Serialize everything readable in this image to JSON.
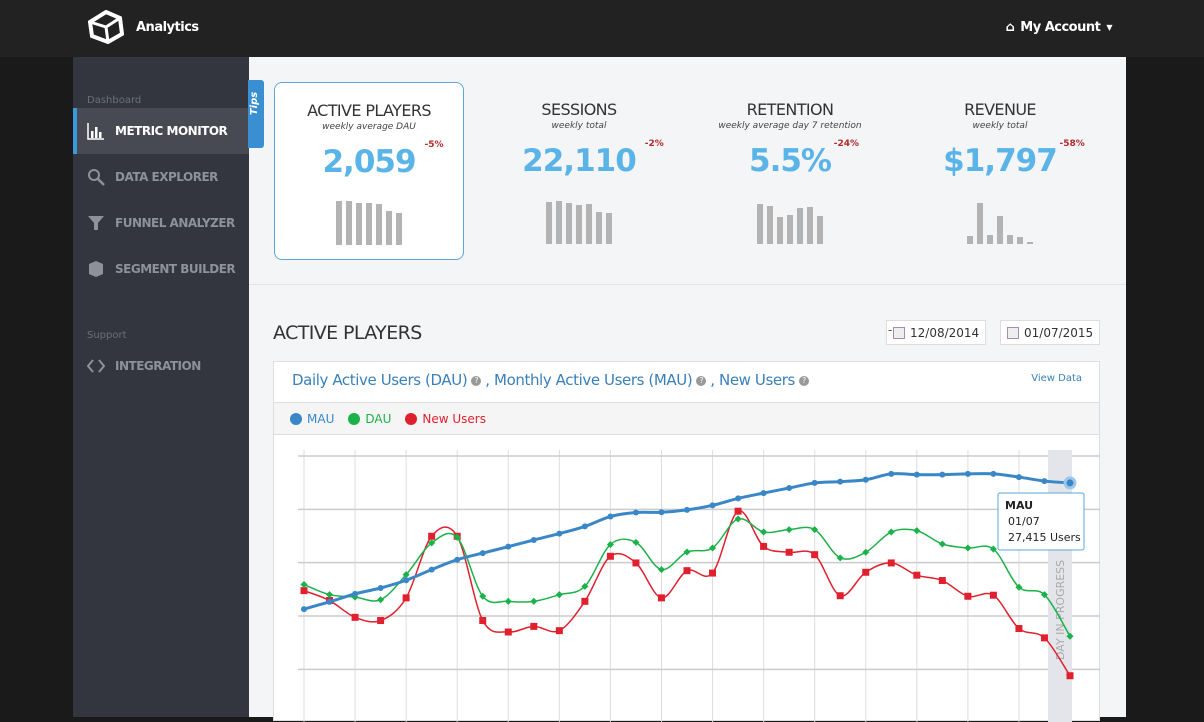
{
  "header": {
    "app_title": "Analytics",
    "account_label": "My Account"
  },
  "sidebar": {
    "section_dashboard": "Dashboard",
    "section_support": "Support",
    "items": [
      {
        "label": "METRIC MONITOR",
        "icon": "bar-chart-icon",
        "active": true
      },
      {
        "label": "DATA EXPLORER",
        "icon": "search-icon"
      },
      {
        "label": "FUNNEL ANALYZER",
        "icon": "funnel-icon"
      },
      {
        "label": "SEGMENT BUILDER",
        "icon": "cube-icon"
      },
      {
        "label": "INTEGRATION",
        "icon": "code-icon"
      }
    ]
  },
  "tips_label": "Tips",
  "kpis": [
    {
      "title": "ACTIVE PLAYERS",
      "subtitle": "weekly average DAU",
      "value": "2,059",
      "delta": "-5%",
      "spark": [
        130,
        130,
        125,
        123,
        120,
        101,
        95
      ]
    },
    {
      "title": "SESSIONS",
      "subtitle": "weekly total",
      "value": "22,110",
      "delta": "-2%",
      "spark": [
        123,
        128,
        120,
        115,
        117,
        95,
        93
      ]
    },
    {
      "title": "RETENTION",
      "subtitle": "weekly average day 7 retention",
      "value": "5.5%",
      "delta": "-24%",
      "spark": [
        117,
        112,
        80,
        87,
        105,
        110,
        82
      ]
    },
    {
      "title": "REVENUE",
      "subtitle": "weekly total",
      "value": "$1,797",
      "delta": "-58%",
      "spark": [
        23,
        120,
        28,
        82,
        28,
        20,
        5
      ]
    }
  ],
  "section": {
    "title": "ACTIVE PLAYERS",
    "date_from": "12/08/2014",
    "date_sep": "-",
    "date_to": "01/07/2015"
  },
  "panel": {
    "title_dau": "Daily Active Users (DAU)",
    "title_mau": ", Monthly Active Users (MAU)",
    "title_new": ", New Users",
    "help": "?",
    "view_data": "View Data"
  },
  "colors": {
    "mau": "#3a87c8",
    "dau": "#1bb24a",
    "new": "#e0202e",
    "accent": "#5ab4e8",
    "delta": "#b52a2a"
  },
  "chart_data": {
    "type": "line",
    "grid": true,
    "xlabel": "",
    "ylabel": "",
    "in_progress_label": "DAY IN PROGRESS",
    "series": [
      {
        "name": "MAU",
        "values": [
          39.6,
          42.3,
          45.3,
          47.5,
          50.4,
          54.4,
          58.1,
          60.6,
          63,
          65.5,
          67.9,
          70.6,
          74.3,
          75.8,
          75.9,
          76.8,
          78.5,
          81.1,
          83.1,
          85,
          86.9,
          87.4,
          88.1,
          90.3,
          90,
          90,
          90.3,
          90.3,
          89.1,
          87.6,
          86.9
        ]
      },
      {
        "name": "DAU",
        "values": [
          48.8,
          45,
          44.1,
          43.1,
          52.5,
          64.4,
          66.5,
          44.4,
          42.5,
          42.5,
          45,
          48.1,
          63.8,
          64.6,
          54.4,
          61,
          62.5,
          73.4,
          68.5,
          69.4,
          69.4,
          58.8,
          60.9,
          68.5,
          69,
          64,
          62.5,
          62.1,
          47.8,
          45,
          29.4
        ]
      },
      {
        "name": "New Users",
        "values": [
          46.5,
          42.8,
          36.5,
          35.3,
          43.8,
          66.9,
          66.9,
          35.3,
          31,
          33.1,
          31.5,
          42.5,
          59.4,
          56.9,
          43.8,
          54,
          53.1,
          76.3,
          63.1,
          60.9,
          60,
          44.6,
          53.4,
          56.9,
          52.3,
          50.3,
          44.4,
          44.8,
          32.3,
          28.8,
          14.6
        ]
      }
    ],
    "tooltip": {
      "series": "MAU",
      "date": "01/07",
      "value": "27,415 Users"
    }
  }
}
